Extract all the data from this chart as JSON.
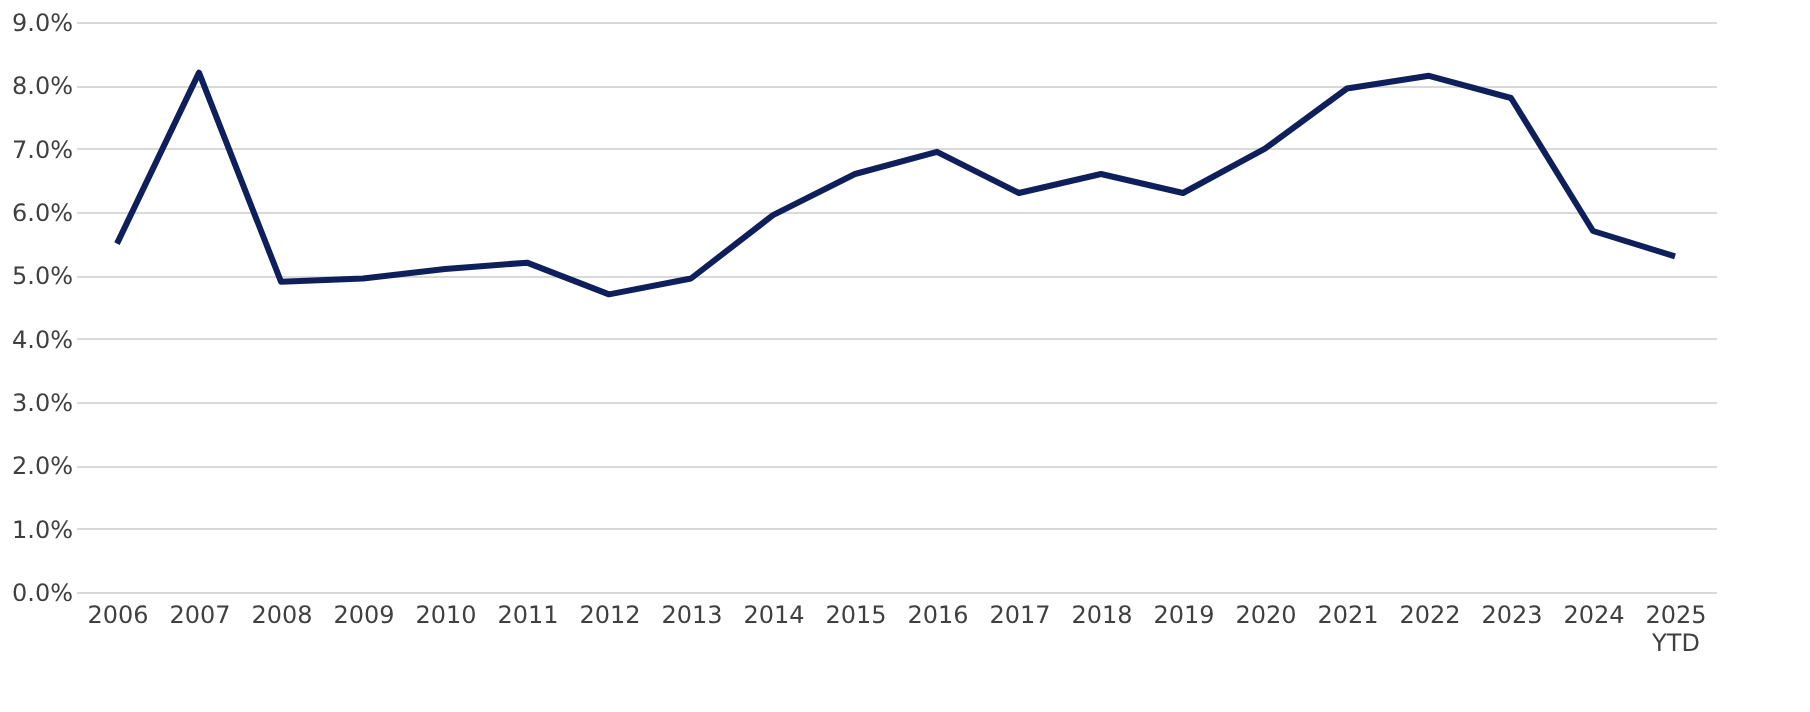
{
  "chart_data": {
    "type": "line",
    "categories": [
      "2006",
      "2007",
      "2008",
      "2009",
      "2010",
      "2011",
      "2012",
      "2013",
      "2014",
      "2015",
      "2016",
      "2017",
      "2018",
      "2019",
      "2020",
      "2021",
      "2022",
      "2023",
      "2024",
      "2025\nYTD"
    ],
    "series": [
      {
        "color": "#0f1f5c",
        "values": [
          5.5,
          8.2,
          4.9,
          4.95,
          5.1,
          5.2,
          4.7,
          4.95,
          5.95,
          6.6,
          6.95,
          6.3,
          6.6,
          6.3,
          7.0,
          7.95,
          8.15,
          7.8,
          5.7,
          5.3
        ]
      }
    ],
    "ylim": [
      0,
      9
    ],
    "yticks": [
      {
        "value": 0,
        "label": "0.0%"
      },
      {
        "value": 1,
        "label": "1.0%"
      },
      {
        "value": 2,
        "label": "2.0%"
      },
      {
        "value": 3,
        "label": "3.0%"
      },
      {
        "value": 4,
        "label": "4.0%"
      },
      {
        "value": 5,
        "label": "5.0%"
      },
      {
        "value": 6,
        "label": "6.0%"
      },
      {
        "value": 7,
        "label": "7.0%"
      },
      {
        "value": 8,
        "label": "8.0%"
      },
      {
        "value": 9,
        "label": "9.0%"
      }
    ],
    "grid": "y",
    "marker": "none",
    "line_style": "solid"
  }
}
